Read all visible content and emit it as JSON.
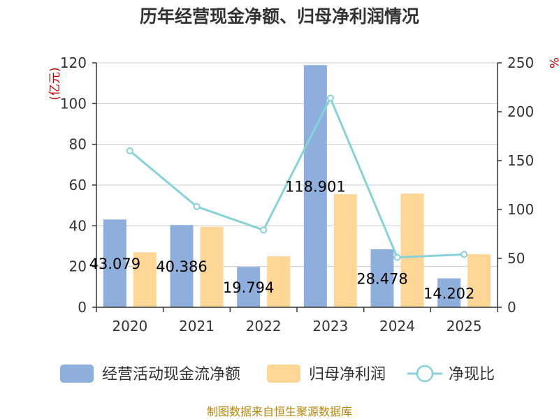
{
  "chart_data": {
    "type": "bar",
    "title": "历年经营现金净额、归母净利润情况",
    "categories": [
      "2020",
      "2021",
      "2022",
      "2023",
      "2024",
      "2025"
    ],
    "left_axis": {
      "unit": "(亿元)",
      "ylim": [
        0,
        120
      ],
      "ticks": [
        0,
        20,
        40,
        60,
        80,
        100,
        120
      ]
    },
    "right_axis": {
      "unit": "%",
      "ylim": [
        0,
        250
      ],
      "ticks": [
        0,
        50,
        100,
        150,
        200,
        250
      ]
    },
    "series": [
      {
        "name": "经营活动现金流净额",
        "type": "bar",
        "axis": "left",
        "color": "#8eaedb",
        "values": [
          43.079,
          40.386,
          19.794,
          118.901,
          28.478,
          14.202
        ],
        "labels": [
          "43.079",
          "40.386",
          "19.794",
          "118.901",
          "28.478",
          "14.202"
        ]
      },
      {
        "name": "归母净利润",
        "type": "bar",
        "axis": "left",
        "color": "#fed797",
        "values": [
          27.0,
          39.5,
          25.0,
          55.5,
          55.8,
          26.0
        ]
      },
      {
        "name": "净现比",
        "type": "line",
        "axis": "right",
        "color": "#86d2d8",
        "values": [
          160,
          103,
          79,
          214,
          51,
          54
        ]
      }
    ],
    "grid": true,
    "legend_position": "bottom",
    "source": "制图数据来自恒生聚源数据库"
  }
}
